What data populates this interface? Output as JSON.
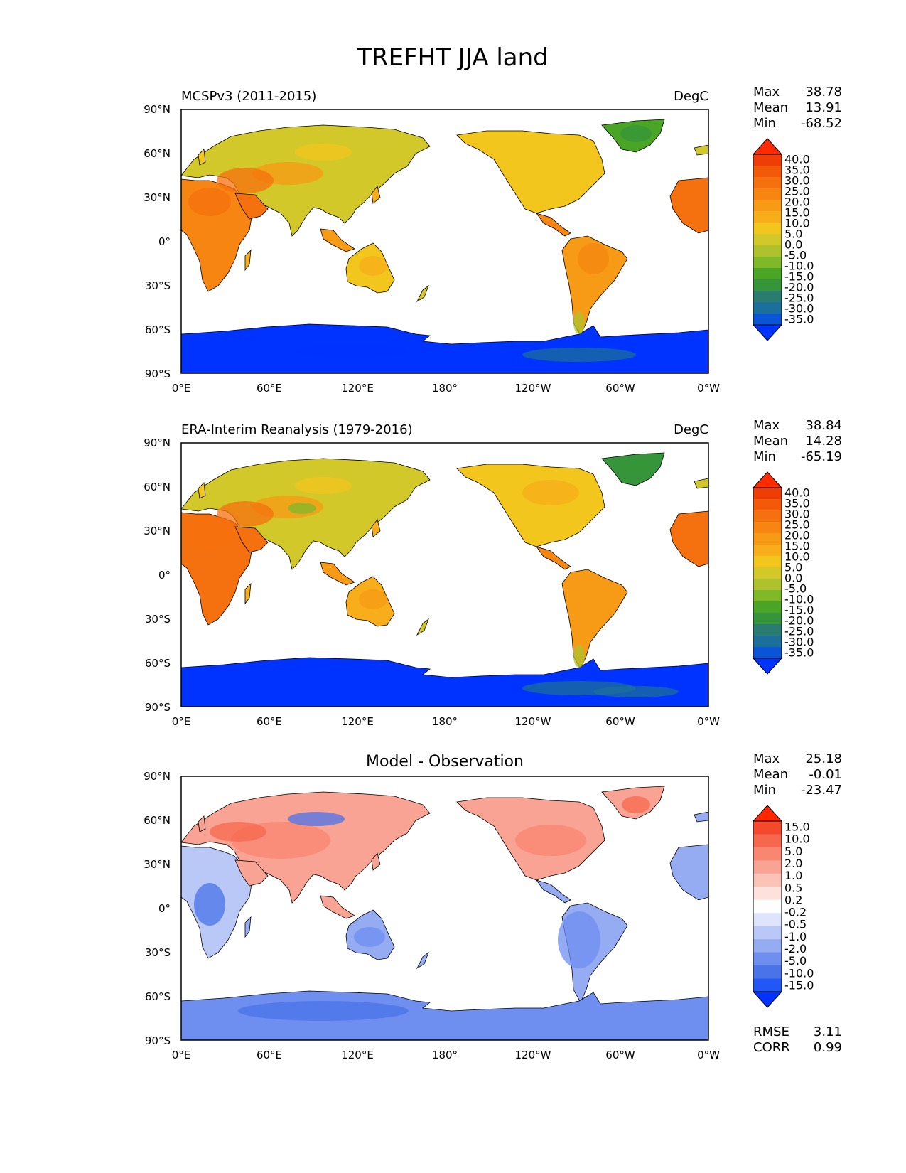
{
  "title": "TREFHT JJA land",
  "axes": {
    "lat_ticks": [
      "90°N",
      "60°N",
      "30°N",
      "0°",
      "30°S",
      "60°S",
      "90°S"
    ],
    "lon_ticks": [
      "0°E",
      "60°E",
      "120°E",
      "180°",
      "120°W",
      "60°W",
      "0°W"
    ]
  },
  "colors": {
    "temp_scale": [
      "#0033ff",
      "#0a55d5",
      "#1c6f9a",
      "#2a7c70",
      "#36953a",
      "#4aa526",
      "#7fb92a",
      "#aec22e",
      "#d3c82a",
      "#f3c61e",
      "#f7ae1a",
      "#f79a16",
      "#f68512",
      "#f5700e",
      "#f25a0a",
      "#ee3d06",
      "#ff2b00"
    ],
    "diff_scale": [
      "#0033ff",
      "#2257f5",
      "#4a73ea",
      "#6f8ff0",
      "#95acf2",
      "#b9c8f6",
      "#dde4fb",
      "#ffffff",
      "#fce1dc",
      "#fbc2b8",
      "#f9a394",
      "#f88670",
      "#f6684e",
      "#f5492d",
      "#ff2600"
    ]
  },
  "panels": [
    {
      "id": "model",
      "title_left": "MCSPv3 (2011-2015)",
      "title_center": "",
      "units": "DegC",
      "stats": [
        {
          "label": "Max",
          "value": "38.78"
        },
        {
          "label": "Mean",
          "value": "13.91"
        },
        {
          "label": "Min",
          "value": "-68.52"
        }
      ],
      "colorbar_levels": [
        "40.0",
        "35.0",
        "30.0",
        "25.0",
        "20.0",
        "15.0",
        "10.0",
        "5.0",
        "0.0",
        "-5.0",
        "-10.0",
        "-15.0",
        "-20.0",
        "-25.0",
        "-30.0",
        "-35.0"
      ],
      "extra_stats": []
    },
    {
      "id": "obs",
      "title_left": "ERA-Interim Reanalysis (1979-2016)",
      "title_center": "",
      "units": "DegC",
      "stats": [
        {
          "label": "Max",
          "value": "38.84"
        },
        {
          "label": "Mean",
          "value": "14.28"
        },
        {
          "label": "Min",
          "value": "-65.19"
        }
      ],
      "colorbar_levels": [
        "40.0",
        "35.0",
        "30.0",
        "25.0",
        "20.0",
        "15.0",
        "10.0",
        "5.0",
        "0.0",
        "-5.0",
        "-10.0",
        "-15.0",
        "-20.0",
        "-25.0",
        "-30.0",
        "-35.0"
      ],
      "extra_stats": []
    },
    {
      "id": "diff",
      "title_left": "",
      "title_center": "Model - Observation",
      "units": "",
      "stats": [
        {
          "label": "Max",
          "value": "25.18"
        },
        {
          "label": "Mean",
          "value": "-0.01"
        },
        {
          "label": "Min",
          "value": "-23.47"
        }
      ],
      "colorbar_levels": [
        "15.0",
        "10.0",
        "5.0",
        "2.0",
        "1.0",
        "0.5",
        "0.2",
        "-0.2",
        "-0.5",
        "-1.0",
        "-2.0",
        "-5.0",
        "-10.0",
        "-15.0"
      ],
      "extra_stats": [
        {
          "label": "RMSE",
          "value": "3.11"
        },
        {
          "label": "CORR",
          "value": "0.99"
        }
      ]
    }
  ]
}
